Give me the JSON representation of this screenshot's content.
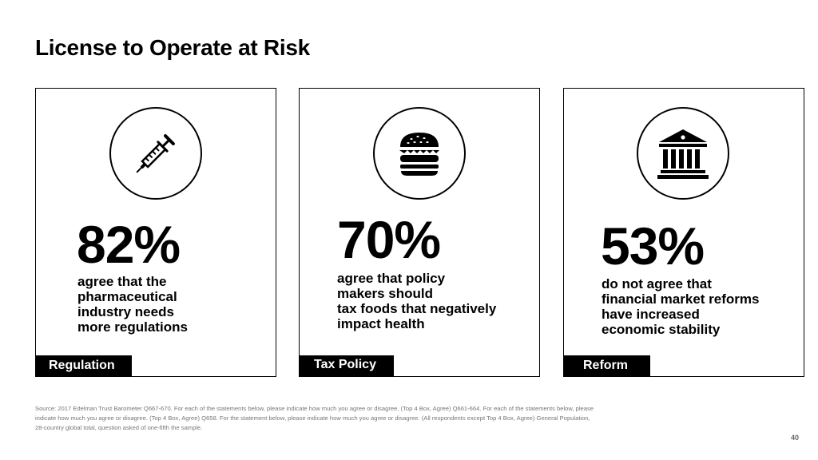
{
  "slide": {
    "title": "License to Operate at Risk",
    "page_number": "40"
  },
  "cards": [
    {
      "icon": "syringe-icon",
      "percent": "82%",
      "lines": [
        "agree that the",
        "pharmaceutical",
        "industry needs",
        "more regulations"
      ],
      "label": "Regulation"
    },
    {
      "icon": "burger-icon",
      "percent": "70%",
      "lines": [
        "agree that policy",
        "makers should",
        "tax foods that negatively",
        "impact health"
      ],
      "label": "Tax Policy"
    },
    {
      "icon": "bank-icon",
      "percent": "53%",
      "lines": [
        "do not agree that",
        "financial market reforms",
        "have increased",
        "economic stability"
      ],
      "label": "Reform"
    }
  ],
  "footer": {
    "source": "Source: 2017 Edelman Trust Barometer Q667-670. For each of the statements below, please indicate how much you agree or disagree. (Top 4 Box, Agree) Q661-664. For each of the statements below, please indicate how much you agree or disagree. (Top 4 Box, Agree) Q658. For the statement below, please indicate how much you agree or disagree. (All respondents except Top 4 Box, Agree) General Population, 28-country global total, question asked of one-fifth the sample."
  }
}
